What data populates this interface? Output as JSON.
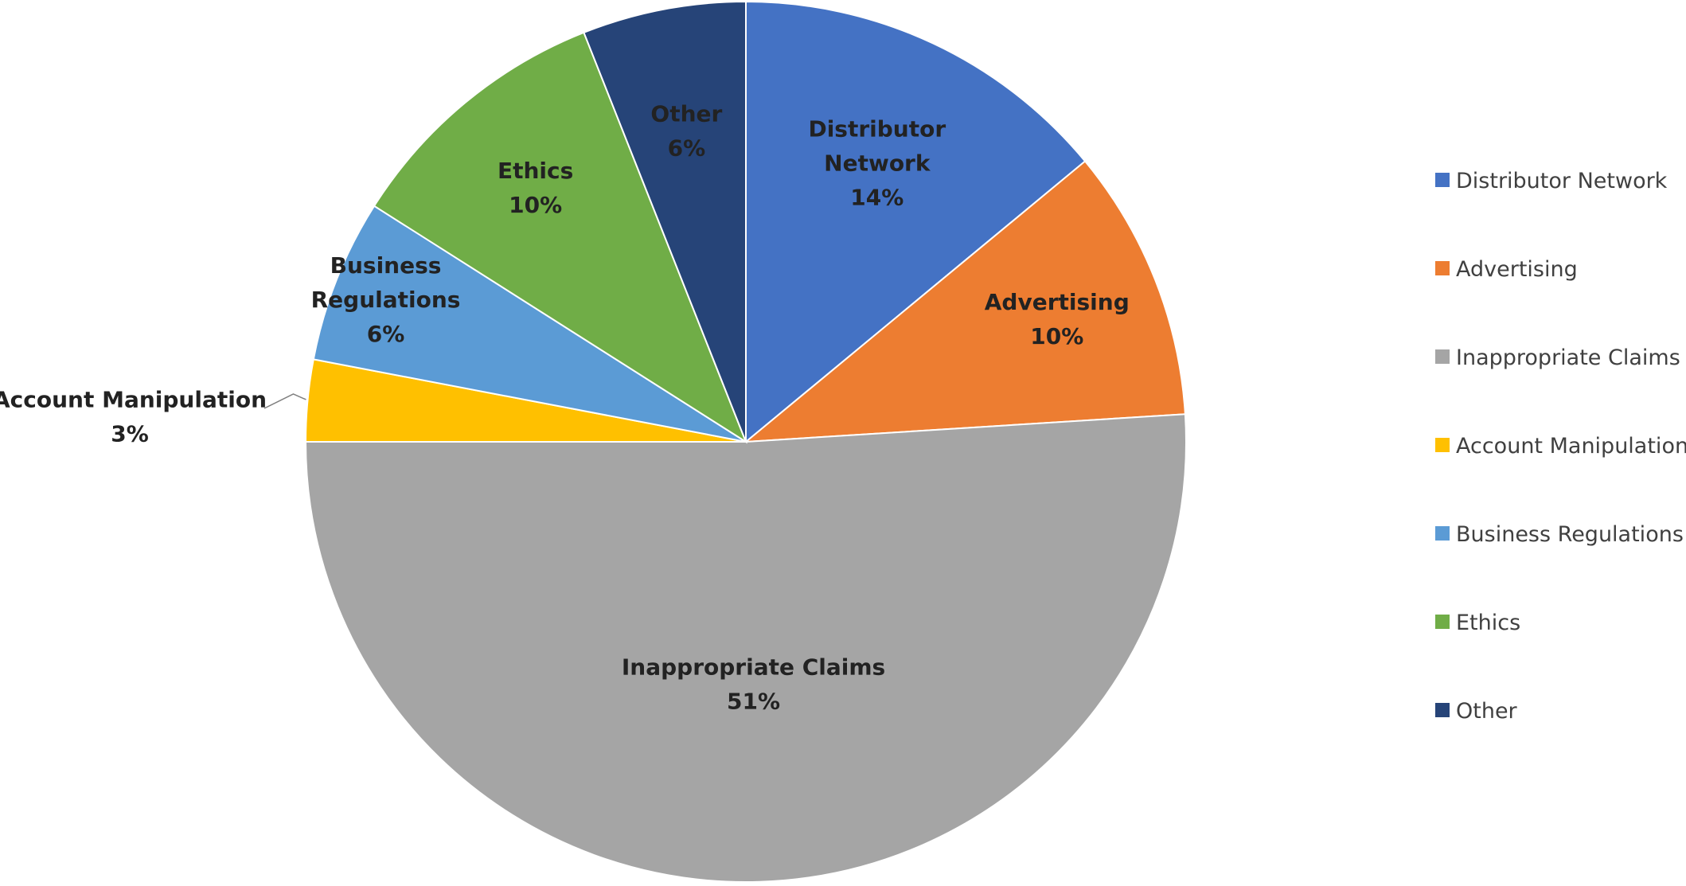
{
  "chart_data": {
    "type": "pie",
    "title": "",
    "start_angle_deg": 0,
    "direction": "clockwise",
    "legend_position": "right",
    "slices": [
      {
        "name": "Distributor Network",
        "label_lines": [
          "Distributor",
          "Network"
        ],
        "percent_label": "14%",
        "value": 14,
        "color": "#4472C4"
      },
      {
        "name": "Advertising",
        "label_lines": [
          "Advertising"
        ],
        "percent_label": "10%",
        "value": 10,
        "color": "#ED7D31"
      },
      {
        "name": "Inappropriate Claims",
        "label_lines": [
          "Inappropriate Claims"
        ],
        "percent_label": "51%",
        "value": 51,
        "color": "#A5A5A5"
      },
      {
        "name": "Account Manipulation",
        "label_lines": [
          "Account Manipulation"
        ],
        "percent_label": "3%",
        "value": 3,
        "color": "#FFC000"
      },
      {
        "name": "Business Regulations",
        "label_lines": [
          "Business",
          "Regulations"
        ],
        "percent_label": "6%",
        "value": 6,
        "color": "#5B9BD5"
      },
      {
        "name": "Ethics",
        "label_lines": [
          "Ethics"
        ],
        "percent_label": "10%",
        "value": 10,
        "color": "#70AD47"
      },
      {
        "name": "Other",
        "label_lines": [
          "Other"
        ],
        "percent_label": "6%",
        "value": 6,
        "color": "#264478"
      }
    ]
  }
}
